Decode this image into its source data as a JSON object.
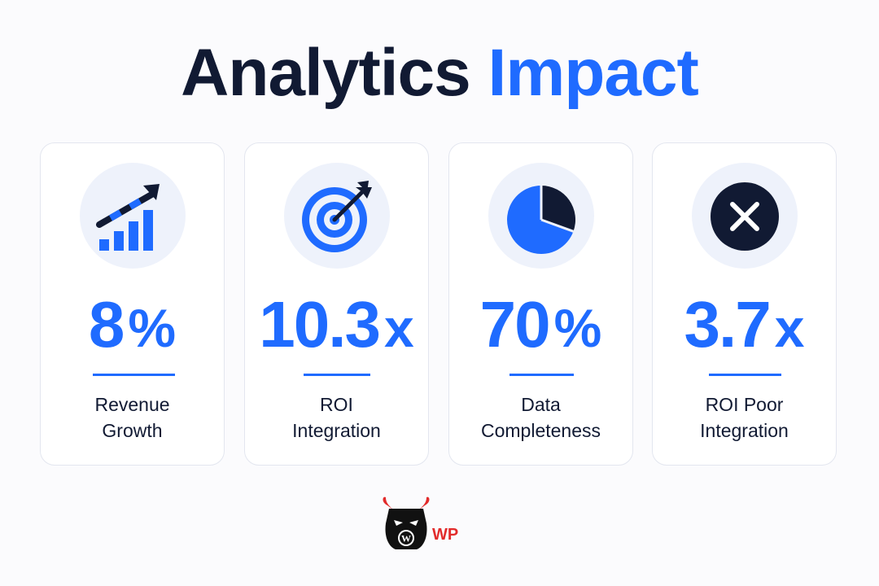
{
  "title": {
    "part1": "Analytics",
    "part2": "Impact"
  },
  "colors": {
    "accent": "#1f6bff",
    "dark": "#111a33",
    "card_bg": "#ffffff",
    "icon_bg": "#eef2fb",
    "brand_red": "#e22b2b"
  },
  "cards": [
    {
      "icon": "bar-chart-growth-icon",
      "value": "8",
      "unit": "%",
      "label_line1": "Revenue",
      "label_line2": "Growth"
    },
    {
      "icon": "target-icon",
      "value": "10.3",
      "unit": "x",
      "label_line1": "ROI",
      "label_line2": "Integration"
    },
    {
      "icon": "pie-chart-icon",
      "value": "70",
      "unit": "%",
      "label_line1": "Data",
      "label_line2": "Completeness"
    },
    {
      "icon": "x-circle-icon",
      "value": "3.7",
      "unit": "x",
      "label_line1": "ROI Poor",
      "label_line2": "Integration"
    }
  ],
  "brand": {
    "logo_icon": "bull-wordpress-logo",
    "text": "WP"
  }
}
